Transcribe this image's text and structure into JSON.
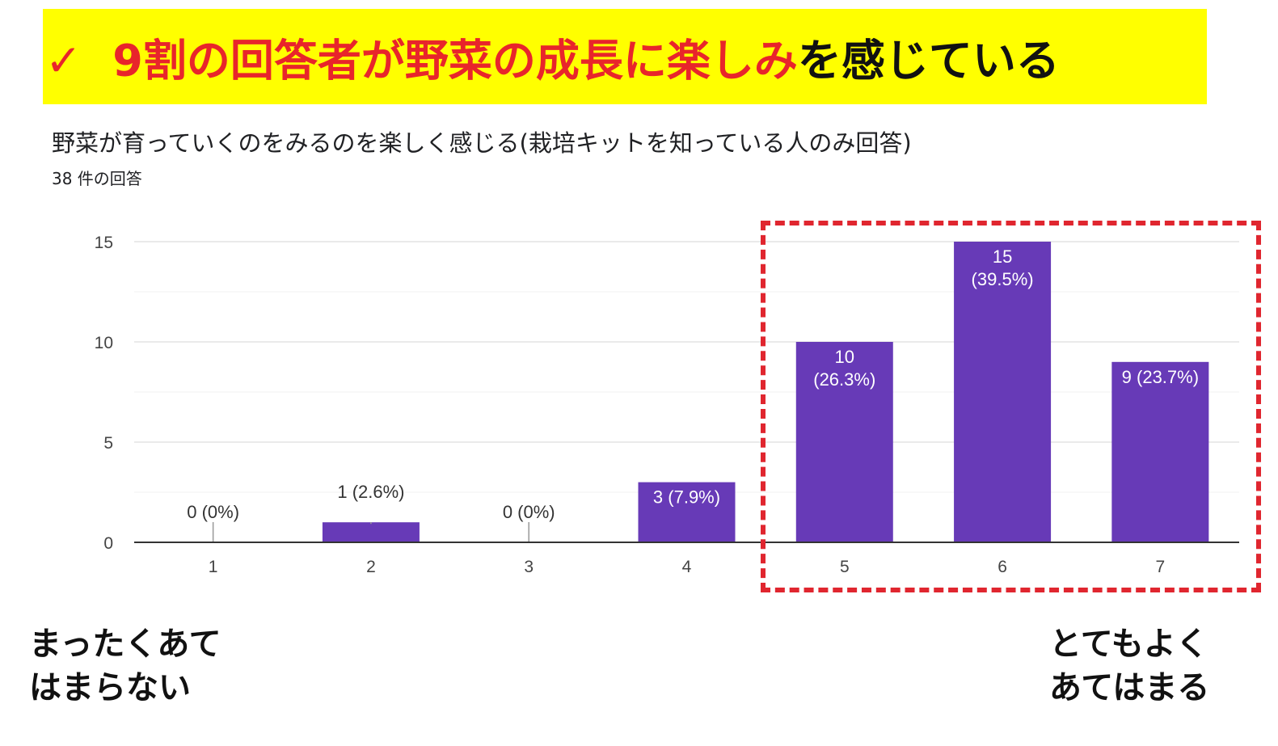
{
  "banner": {
    "check": "✓",
    "headline_red": "9割の回答者が野菜の成長に楽しみ",
    "headline_black": "を感じている"
  },
  "form": {
    "question": "野菜が育っていくのをみるのを楽しく感じる(栽培キットを知っている人のみ回答)",
    "response_count": "38 件の回答"
  },
  "scale": {
    "left_line1": "まったくあて",
    "left_line2": "はまらない",
    "right_line1": "とてもよく",
    "right_line2": "あてはまる"
  },
  "colors": {
    "bar": "#673ab7",
    "highlight": "#e0262f",
    "banner_bg": "#ffff00",
    "banner_red": "#e8252b"
  },
  "chart_data": {
    "type": "bar",
    "categories": [
      "1",
      "2",
      "3",
      "4",
      "5",
      "6",
      "7"
    ],
    "values": [
      0,
      1,
      0,
      3,
      10,
      15,
      9
    ],
    "data_labels": [
      [
        "0 (0%)"
      ],
      [
        "1 (2.6%)"
      ],
      [
        "0 (0%)"
      ],
      [
        "3 (7.9%)"
      ],
      [
        "10",
        "(26.3%)"
      ],
      [
        "15",
        "(39.5%)"
      ],
      [
        "9 (23.7%)"
      ]
    ],
    "ylim": [
      0,
      15
    ],
    "yticks": [
      0,
      5,
      10,
      15
    ],
    "grid": true,
    "legend": "none"
  }
}
